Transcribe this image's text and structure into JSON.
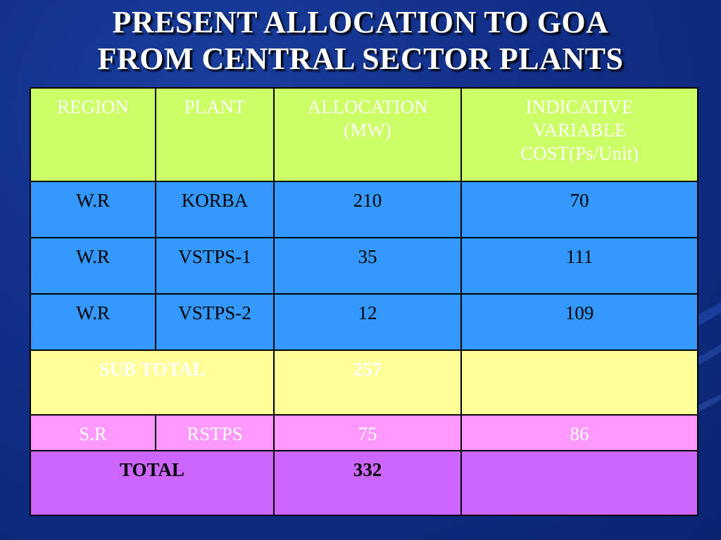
{
  "slide": {
    "title_line1": "PRESENT ALLOCATION TO GOA",
    "title_line2": "FROM CENTRAL SECTOR PLANTS"
  },
  "table": {
    "headers": {
      "region": "REGION",
      "plant": "PLANT",
      "allocation_line1": "ALLOCATION",
      "allocation_line2": "(MW)",
      "cost_line1": "INDICATIVE",
      "cost_line2": "VARIABLE",
      "cost_line3": "COST(Ps/Unit)"
    },
    "rows": [
      {
        "region": "W.R",
        "plant": "KORBA",
        "allocation": "210",
        "cost": "70"
      },
      {
        "region": "W.R",
        "plant": "VSTPS-1",
        "allocation": "35",
        "cost": "111"
      },
      {
        "region": "W.R",
        "plant": "VSTPS-2",
        "allocation": "12",
        "cost": "109"
      }
    ],
    "subtotal": {
      "label": "SUB TOTAL",
      "allocation": "257",
      "cost": ""
    },
    "sr_row": {
      "region": "S.R",
      "plant": "RSTPS",
      "allocation": "75",
      "cost": "86"
    },
    "total": {
      "label": "TOTAL",
      "allocation": "332",
      "cost": ""
    }
  },
  "colors": {
    "background": "#11308a",
    "header_fill": "#ccff66",
    "wr_fill": "#3399ff",
    "subtotal_fill": "#ffff99",
    "sr_fill": "#ff99ff",
    "total_fill": "#cc66ff"
  }
}
